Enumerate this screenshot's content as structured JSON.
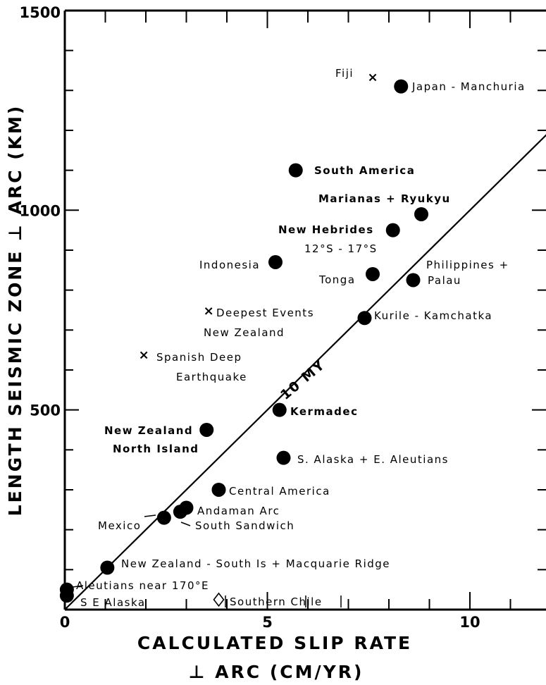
{
  "chart_data": {
    "type": "scatter",
    "title": "",
    "xlabel_line1": "CALCULATED   SLIP   RATE",
    "xlabel_line2": "⊥ ARC   (CM/YR)",
    "ylabel": "LENGTH   SEISMIC   ZONE   ⊥ ARC  (KM)",
    "xlim": [
      0,
      12
    ],
    "ylim": [
      0,
      1500
    ],
    "x_ticks": [
      0,
      5,
      10
    ],
    "y_ticks": [
      500,
      1000,
      1500
    ],
    "x_tick_labels": [
      "0",
      "5",
      "10"
    ],
    "y_tick_labels": [
      "500",
      "1000",
      "1500"
    ],
    "grid": false,
    "reference_line": {
      "label": "10 MY",
      "slope_km_per_cm_yr": 100
    },
    "series": [
      {
        "marker": "circle",
        "points": [
          {
            "label": "Japan - Manchuria",
            "x": 8.3,
            "y": 1310
          },
          {
            "label": "South America",
            "x": 5.7,
            "y": 1100
          },
          {
            "label": "Marianas + Ryukyu",
            "x": 8.8,
            "y": 990
          },
          {
            "label": "New Hebrides 12°S - 17°S",
            "x": 8.1,
            "y": 950
          },
          {
            "label": "Indonesia",
            "x": 5.2,
            "y": 870
          },
          {
            "label": "Tonga",
            "x": 7.6,
            "y": 840
          },
          {
            "label": "Philippines + Palau",
            "x": 8.6,
            "y": 825
          },
          {
            "label": "Kurile - Kamchatka",
            "x": 7.4,
            "y": 730
          },
          {
            "label": "Kermadec",
            "x": 5.3,
            "y": 500
          },
          {
            "label": "New Zealand North Island",
            "x": 3.5,
            "y": 450
          },
          {
            "label": "S. Alaska + E. Aleutians",
            "x": 5.4,
            "y": 380
          },
          {
            "label": "Central America",
            "x": 3.8,
            "y": 300
          },
          {
            "label": "Andaman Arc",
            "x": 3.0,
            "y": 255
          },
          {
            "label": "South Sandwich",
            "x": 2.85,
            "y": 245
          },
          {
            "label": "Mexico",
            "x": 2.45,
            "y": 230
          },
          {
            "label": "New Zealand - South Is + Macquarie Ridge",
            "x": 1.05,
            "y": 105
          },
          {
            "label": "Aleutians near 170°E",
            "x": 0.05,
            "y": 50
          },
          {
            "label": "S. E. Alaska",
            "x": 0.05,
            "y": 35
          }
        ]
      },
      {
        "marker": "x",
        "points": [
          {
            "label": "Fiji",
            "x": 7.6,
            "y": 1335
          },
          {
            "label": "Deepest Events New Zealand",
            "x": 3.55,
            "y": 750
          },
          {
            "label": "Spanish Deep Earthquake",
            "x": 1.95,
            "y": 640
          }
        ]
      },
      {
        "marker": "diamond",
        "points": [
          {
            "label": "Southern Chile",
            "x": 3.8,
            "y": 25
          }
        ]
      }
    ]
  },
  "labels": {
    "fiji": "Fiji",
    "japan": "Japan - Manchuria",
    "south_america": "South America",
    "marianas": "Marianas + Ryukyu",
    "new_hebrides_1": "New Hebrides",
    "new_hebrides_2": "12°S - 17°S",
    "indonesia": "Indonesia",
    "tonga": "Tonga",
    "philippines_1": "Philippines +",
    "philippines_2": "Palau",
    "deepest_1": "Deepest Events",
    "deepest_2": "New Zealand",
    "kurile": "Kurile - Kamchatka",
    "spanish_1": "Spanish Deep",
    "spanish_2": "Earthquake",
    "my": "10 MY",
    "kermadec": "Kermadec",
    "nz_north_1": "New Zealand",
    "nz_north_2": "North Island",
    "s_alaska": "S. Alaska + E. Aleutians",
    "central_america": "Central America",
    "andaman": "Andaman Arc",
    "mexico": "Mexico",
    "south_sandwich": "South Sandwich",
    "nz_south": "New Zealand - South Is + Macquarie Ridge",
    "aleutians": "Aleutians near 170°E",
    "se_alaska": "S E Alaska",
    "southern_chile": "Southern  Chile"
  }
}
